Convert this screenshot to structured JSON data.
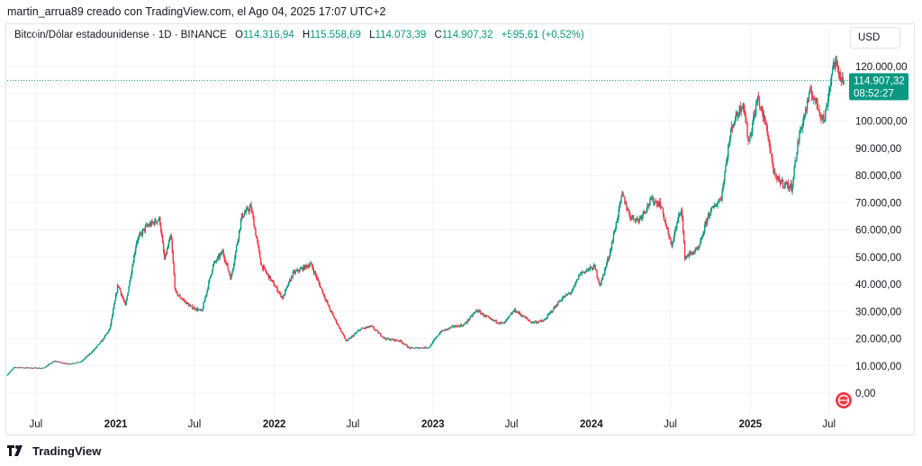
{
  "header": {
    "attribution": "martin_arrua89 creado con TradingView.com, el Ago 04, 2025 17:07 UTC+2"
  },
  "legend": {
    "symbol": "Bitcoin/Dólar estadounidense · 1D · BINANCE",
    "open_label": "O",
    "open": "114.316,94",
    "high_label": "H",
    "high": "115.558,69",
    "low_label": "L",
    "low": "114.073,39",
    "close_label": "C",
    "close": "114.907,32",
    "change": "+595,61 (+0,52%)"
  },
  "currency_button": "USD",
  "price_tag": {
    "price": "114.907,32",
    "countdown": "08:52:27",
    "value": 114907.32
  },
  "footer": {
    "brand": "TradingView"
  },
  "colors": {
    "up": "#089981",
    "down": "#f23645",
    "grid": "#f0f3fa",
    "axis_text": "#131722",
    "price_line": "#089981",
    "tag_bg": "#089981"
  },
  "chart_data": {
    "type": "candlestick",
    "ylim": [
      -15000,
      125000
    ],
    "yticks": [
      "120.000,00",
      "110.000,00",
      "100.000,00",
      "90.000,00",
      "80.000,00",
      "70.000,00",
      "60.000,00",
      "50.000,00",
      "40.000,00",
      "30.000,00",
      "20.000,00",
      "10.000,00",
      "0,00"
    ],
    "ytick_values": [
      120000,
      110000,
      100000,
      90000,
      80000,
      70000,
      60000,
      50000,
      40000,
      30000,
      20000,
      10000,
      0
    ],
    "xticks": [
      "Jul",
      "2021",
      "Jul",
      "2022",
      "Jul",
      "2023",
      "Jul",
      "2024",
      "Jul",
      "2025",
      "Jul"
    ],
    "xtick_dates": [
      "2020-07-01",
      "2021-01-01",
      "2021-07-01",
      "2022-01-01",
      "2022-07-01",
      "2023-01-01",
      "2023-07-01",
      "2024-01-01",
      "2024-07-01",
      "2025-01-01",
      "2025-07-01"
    ],
    "xlim": [
      "2020-04-26",
      "2025-08-10"
    ],
    "series": [
      {
        "points": [
          [
            "2020-04-26",
            6500
          ],
          [
            "2020-05-15",
            9500
          ],
          [
            "2020-06-15",
            9300
          ],
          [
            "2020-07-20",
            9200
          ],
          [
            "2020-08-15",
            11800
          ],
          [
            "2020-09-15",
            10700
          ],
          [
            "2020-10-15",
            11500
          ],
          [
            "2020-11-10",
            15300
          ],
          [
            "2020-12-01",
            19000
          ],
          [
            "2020-12-20",
            23500
          ],
          [
            "2021-01-08",
            40000
          ],
          [
            "2021-01-25",
            32000
          ],
          [
            "2021-02-20",
            56000
          ],
          [
            "2021-03-13",
            61000
          ],
          [
            "2021-04-14",
            64000
          ],
          [
            "2021-04-25",
            49000
          ],
          [
            "2021-05-10",
            58000
          ],
          [
            "2021-05-20",
            37000
          ],
          [
            "2021-06-22",
            32000
          ],
          [
            "2021-07-20",
            30000
          ],
          [
            "2021-08-15",
            47000
          ],
          [
            "2021-09-06",
            52000
          ],
          [
            "2021-09-25",
            42000
          ],
          [
            "2021-10-20",
            65000
          ],
          [
            "2021-11-10",
            68500
          ],
          [
            "2021-12-04",
            47000
          ],
          [
            "2022-01-22",
            35000
          ],
          [
            "2022-02-15",
            44000
          ],
          [
            "2022-03-28",
            47500
          ],
          [
            "2022-05-10",
            31000
          ],
          [
            "2022-06-18",
            19000
          ],
          [
            "2022-07-20",
            23500
          ],
          [
            "2022-08-14",
            24500
          ],
          [
            "2022-09-15",
            20000
          ],
          [
            "2022-10-20",
            19200
          ],
          [
            "2022-11-10",
            16500
          ],
          [
            "2022-12-25",
            16800
          ],
          [
            "2023-01-20",
            22500
          ],
          [
            "2023-02-20",
            24500
          ],
          [
            "2023-03-15",
            25000
          ],
          [
            "2023-04-14",
            30500
          ],
          [
            "2023-05-15",
            27000
          ],
          [
            "2023-06-15",
            25500
          ],
          [
            "2023-07-10",
            30500
          ],
          [
            "2023-08-18",
            26000
          ],
          [
            "2023-09-15",
            26500
          ],
          [
            "2023-10-25",
            34500
          ],
          [
            "2023-11-20",
            37500
          ],
          [
            "2023-12-08",
            44000
          ],
          [
            "2024-01-10",
            46500
          ],
          [
            "2024-01-23",
            39500
          ],
          [
            "2024-02-15",
            52000
          ],
          [
            "2024-03-14",
            73000
          ],
          [
            "2024-04-01",
            65000
          ],
          [
            "2024-04-20",
            63500
          ],
          [
            "2024-05-20",
            71000
          ],
          [
            "2024-06-10",
            69500
          ],
          [
            "2024-07-05",
            54000
          ],
          [
            "2024-07-28",
            68500
          ],
          [
            "2024-08-05",
            50000
          ],
          [
            "2024-09-06",
            53000
          ],
          [
            "2024-09-28",
            65500
          ],
          [
            "2024-10-28",
            72000
          ],
          [
            "2024-11-12",
            89000
          ],
          [
            "2024-11-22",
            98500
          ],
          [
            "2024-12-17",
            107000
          ],
          [
            "2024-12-30",
            92000
          ],
          [
            "2025-01-20",
            108500
          ],
          [
            "2025-02-10",
            97000
          ],
          [
            "2025-02-28",
            79000
          ],
          [
            "2025-04-08",
            75500
          ],
          [
            "2025-04-25",
            94500
          ],
          [
            "2025-05-22",
            111000
          ],
          [
            "2025-06-22",
            100000
          ],
          [
            "2025-07-14",
            122000
          ],
          [
            "2025-08-04",
            114907
          ]
        ]
      }
    ]
  }
}
